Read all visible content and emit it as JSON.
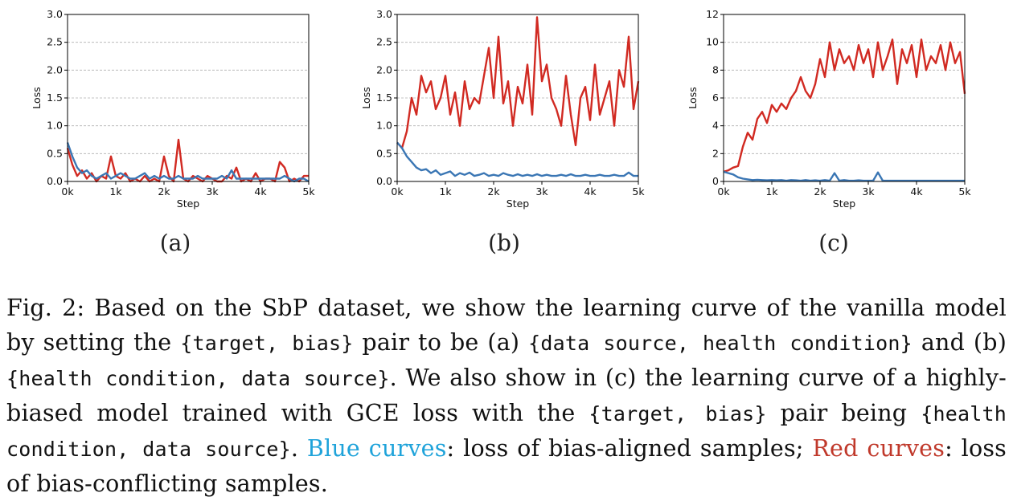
{
  "colors": {
    "blue": "#3a76b4",
    "red": "#d12a22",
    "caption_blue": "#1fa3da",
    "caption_red": "#c0392b"
  },
  "panel_labels": [
    "(a)",
    "(b)",
    "(c)"
  ],
  "chart_data": [
    {
      "type": "line",
      "panel": "(a)",
      "xlabel": "Step",
      "ylabel": "Loss",
      "xlim": [
        0,
        5000
      ],
      "ylim": [
        0,
        3.0
      ],
      "xticks": [
        0,
        1000,
        2000,
        3000,
        4000,
        5000
      ],
      "xtick_labels": [
        "0k",
        "1k",
        "2k",
        "3k",
        "4k",
        "5k"
      ],
      "yticks": [
        0.0,
        0.5,
        1.0,
        1.5,
        2.0,
        2.5,
        3.0
      ],
      "ytick_labels": [
        "0.0",
        "0.5",
        "1.0",
        "1.5",
        "2.0",
        "2.5",
        "3.0"
      ],
      "grid": true,
      "x": [
        0,
        100,
        200,
        300,
        400,
        500,
        600,
        700,
        800,
        900,
        1000,
        1100,
        1200,
        1300,
        1400,
        1500,
        1600,
        1700,
        1800,
        1900,
        2000,
        2100,
        2200,
        2300,
        2400,
        2500,
        2600,
        2700,
        2800,
        2900,
        3000,
        3100,
        3200,
        3300,
        3400,
        3500,
        3600,
        3700,
        3800,
        3900,
        4000,
        4100,
        4200,
        4300,
        4400,
        4500,
        4600,
        4700,
        4800,
        4900,
        5000
      ],
      "series": [
        {
          "color": "red",
          "values": [
            0.6,
            0.3,
            0.1,
            0.2,
            0.05,
            0.15,
            0.0,
            0.1,
            0.05,
            0.45,
            0.1,
            0.05,
            0.15,
            0.0,
            0.05,
            0.0,
            0.1,
            0.0,
            0.05,
            0.0,
            0.45,
            0.1,
            0.0,
            0.75,
            0.05,
            0.0,
            0.1,
            0.05,
            0.0,
            0.1,
            0.05,
            0.0,
            0.0,
            0.1,
            0.05,
            0.25,
            0.0,
            0.05,
            0.0,
            0.15,
            0.0,
            0.05,
            0.05,
            0.0,
            0.35,
            0.25,
            0.0,
            0.05,
            0.0,
            0.1,
            0.1
          ]
        },
        {
          "color": "blue",
          "values": [
            0.7,
            0.45,
            0.25,
            0.15,
            0.2,
            0.1,
            0.05,
            0.1,
            0.15,
            0.05,
            0.1,
            0.15,
            0.1,
            0.05,
            0.05,
            0.1,
            0.15,
            0.05,
            0.1,
            0.05,
            0.1,
            0.05,
            0.05,
            0.1,
            0.05,
            0.05,
            0.05,
            0.1,
            0.05,
            0.05,
            0.05,
            0.05,
            0.1,
            0.05,
            0.2,
            0.05,
            0.05,
            0.05,
            0.05,
            0.05,
            0.05,
            0.05,
            0.05,
            0.05,
            0.05,
            0.1,
            0.05,
            0.0,
            0.05,
            0.05,
            0.0
          ]
        }
      ]
    },
    {
      "type": "line",
      "panel": "(b)",
      "xlabel": "Step",
      "ylabel": "Loss",
      "xlim": [
        0,
        5000
      ],
      "ylim": [
        0,
        3.0
      ],
      "xticks": [
        0,
        1000,
        2000,
        3000,
        4000,
        5000
      ],
      "xtick_labels": [
        "0k",
        "1k",
        "2k",
        "3k",
        "4k",
        "5k"
      ],
      "yticks": [
        0.0,
        0.5,
        1.0,
        1.5,
        2.0,
        2.5,
        3.0
      ],
      "ytick_labels": [
        "0.0",
        "0.5",
        "1.0",
        "1.5",
        "2.0",
        "2.5",
        "3.0"
      ],
      "grid": true,
      "x": [
        0,
        100,
        200,
        300,
        400,
        500,
        600,
        700,
        800,
        900,
        1000,
        1100,
        1200,
        1300,
        1400,
        1500,
        1600,
        1700,
        1800,
        1900,
        2000,
        2100,
        2200,
        2300,
        2400,
        2500,
        2600,
        2700,
        2800,
        2900,
        3000,
        3100,
        3200,
        3300,
        3400,
        3500,
        3600,
        3700,
        3800,
        3900,
        4000,
        4100,
        4200,
        4300,
        4400,
        4500,
        4600,
        4700,
        4800,
        4900,
        5000
      ],
      "series": [
        {
          "color": "red",
          "values": [
            0.7,
            0.6,
            0.9,
            1.5,
            1.2,
            1.9,
            1.6,
            1.8,
            1.3,
            1.5,
            1.9,
            1.2,
            1.6,
            1.0,
            1.8,
            1.3,
            1.5,
            1.4,
            1.9,
            2.4,
            1.5,
            2.6,
            1.4,
            1.8,
            1.0,
            1.7,
            1.4,
            2.1,
            1.2,
            2.95,
            1.8,
            2.1,
            1.5,
            1.3,
            1.0,
            1.9,
            1.2,
            0.65,
            1.5,
            1.7,
            1.1,
            2.1,
            1.2,
            1.5,
            1.8,
            1.0,
            2.0,
            1.7,
            2.6,
            1.3,
            1.8
          ]
        },
        {
          "color": "blue",
          "values": [
            0.7,
            0.6,
            0.45,
            0.35,
            0.25,
            0.2,
            0.22,
            0.15,
            0.2,
            0.12,
            0.15,
            0.18,
            0.1,
            0.15,
            0.12,
            0.16,
            0.1,
            0.12,
            0.15,
            0.1,
            0.12,
            0.1,
            0.15,
            0.12,
            0.1,
            0.13,
            0.1,
            0.12,
            0.1,
            0.13,
            0.1,
            0.12,
            0.1,
            0.1,
            0.12,
            0.1,
            0.13,
            0.1,
            0.1,
            0.12,
            0.1,
            0.1,
            0.12,
            0.1,
            0.1,
            0.12,
            0.1,
            0.1,
            0.16,
            0.1,
            0.1
          ]
        }
      ]
    },
    {
      "type": "line",
      "panel": "(c)",
      "xlabel": "Step",
      "ylabel": "Loss",
      "xlim": [
        0,
        5000
      ],
      "ylim": [
        0,
        12
      ],
      "xticks": [
        0,
        1000,
        2000,
        3000,
        4000,
        5000
      ],
      "xtick_labels": [
        "0k",
        "1k",
        "2k",
        "3k",
        "4k",
        "5k"
      ],
      "yticks": [
        0,
        2,
        4,
        6,
        8,
        10,
        12
      ],
      "ytick_labels": [
        "0",
        "2",
        "4",
        "6",
        "8",
        "10",
        "12"
      ],
      "grid": true,
      "x": [
        0,
        100,
        200,
        300,
        400,
        500,
        600,
        700,
        800,
        900,
        1000,
        1100,
        1200,
        1300,
        1400,
        1500,
        1600,
        1700,
        1800,
        1900,
        2000,
        2100,
        2200,
        2300,
        2400,
        2500,
        2600,
        2700,
        2800,
        2900,
        3000,
        3100,
        3200,
        3300,
        3400,
        3500,
        3600,
        3700,
        3800,
        3900,
        4000,
        4100,
        4200,
        4300,
        4400,
        4500,
        4600,
        4700,
        4800,
        4900,
        5000
      ],
      "series": [
        {
          "color": "red",
          "values": [
            0.7,
            0.8,
            1.0,
            1.1,
            2.5,
            3.5,
            3.0,
            4.5,
            5.0,
            4.2,
            5.5,
            5.0,
            5.6,
            5.2,
            6.0,
            6.5,
            7.5,
            6.5,
            6.0,
            7.0,
            8.8,
            7.5,
            10.0,
            8.0,
            9.5,
            8.5,
            9.0,
            8.0,
            9.8,
            8.5,
            9.5,
            7.5,
            10.0,
            8.0,
            9.0,
            10.2,
            7.0,
            9.5,
            8.5,
            9.8,
            7.5,
            10.2,
            8.0,
            9.0,
            8.5,
            9.8,
            8.0,
            10.0,
            8.5,
            9.3,
            6.3
          ]
        },
        {
          "color": "blue",
          "values": [
            0.7,
            0.6,
            0.5,
            0.3,
            0.2,
            0.15,
            0.1,
            0.12,
            0.1,
            0.08,
            0.1,
            0.08,
            0.1,
            0.05,
            0.1,
            0.08,
            0.05,
            0.1,
            0.05,
            0.08,
            0.05,
            0.1,
            0.05,
            0.6,
            0.05,
            0.1,
            0.05,
            0.05,
            0.08,
            0.05,
            0.05,
            0.05,
            0.65,
            0.05,
            0.05,
            0.05,
            0.05,
            0.05,
            0.05,
            0.05,
            0.05,
            0.05,
            0.05,
            0.05,
            0.05,
            0.05,
            0.05,
            0.05,
            0.05,
            0.05,
            0.05
          ]
        }
      ]
    }
  ],
  "caption": {
    "fig_label": "Fig. 2:",
    "t1": "Based on the SbP dataset, we show the learning curve of the vanilla model by setting the",
    "m1": "{target, bias}",
    "t2": "pair to be (a)",
    "m2": "{data source, health condition}",
    "t3": "and (b)",
    "m3": "{health condition, data source}",
    "t4": ". We also show in (c) the learning curve of a highly-biased model trained with GCE loss with the",
    "m4": "{target, bias}",
    "t5": "pair being",
    "m5": "{health condition, data source}",
    "t6": ".",
    "blue_label": "Blue curves",
    "t7": ": loss of bias-aligned samples;",
    "red_label": "Red curves",
    "t8": ": loss of bias-conflicting samples."
  }
}
